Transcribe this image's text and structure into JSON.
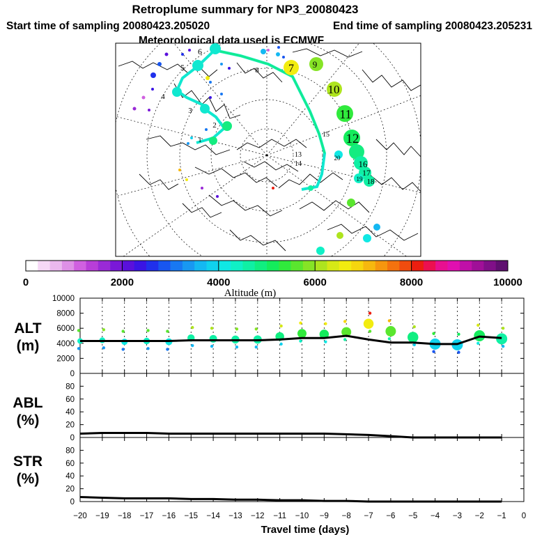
{
  "header": {
    "title": "Retroplume summary for NP3_20080423",
    "start_label": "Start time of sampling 20080423.205020",
    "end_label": "End time of sampling 20080423.205231",
    "met_label": "Meteorological data used is ECMWF"
  },
  "colorbar": {
    "tick_labels": [
      "0",
      "2000",
      "4000",
      "6000",
      "8000",
      "10000"
    ],
    "label": "Altitude (m)",
    "colors": [
      "#ffffff",
      "#f6d8f6",
      "#eab8ee",
      "#de90e6",
      "#d060e0",
      "#b83ed8",
      "#9a2ad6",
      "#7a18d8",
      "#5a10dc",
      "#3a14e4",
      "#2030ec",
      "#1856f0",
      "#1878f2",
      "#1898f2",
      "#14b8f2",
      "#10d2ee",
      "#10e8e4",
      "#10f0c6",
      "#10f0a4",
      "#10ee80",
      "#14ec5c",
      "#30ea3c",
      "#5ae62e",
      "#86e426",
      "#aee41e",
      "#d6e816",
      "#f2ec10",
      "#f6d60e",
      "#f6b80e",
      "#f6960e",
      "#f4720e",
      "#f04c0e",
      "#ec1e10",
      "#ec1050",
      "#e81090",
      "#e010b0",
      "#c010a8",
      "#a01098",
      "#801088",
      "#601070"
    ]
  },
  "map": {
    "numbers": [
      "1",
      "2",
      "3",
      "4",
      "5",
      "6",
      "7",
      "8",
      "9",
      "10",
      "11",
      "12",
      "13",
      "14",
      "15",
      "16",
      "17",
      "18",
      "19",
      "20"
    ]
  },
  "chart_data": [
    {
      "type": "line",
      "panel": "ALT",
      "ylabel": "ALT\n(m)",
      "ylabel_lines": [
        "ALT",
        "(m)"
      ],
      "ylim": [
        0,
        10000
      ],
      "yticks": [
        0,
        2000,
        4000,
        6000,
        8000,
        10000
      ],
      "x": [
        -20,
        -19,
        -18,
        -17,
        -16,
        -15,
        -14,
        -13,
        -12,
        -11,
        -10,
        -9,
        -8,
        -7,
        -6,
        -5,
        -4,
        -3,
        -2,
        -1
      ],
      "mean_altitude_m": [
        4300,
        4300,
        4300,
        4300,
        4300,
        4400,
        4400,
        4400,
        4400,
        4500,
        4700,
        4700,
        5000,
        4500,
        4100,
        4100,
        3900,
        3900,
        4900,
        4700
      ],
      "cluster_centers_altitude_m": [
        4300,
        4400,
        4200,
        4300,
        4200,
        4700,
        4600,
        4500,
        4500,
        4900,
        5300,
        5200,
        5500,
        6600,
        5600,
        4800,
        3900,
        3800,
        5000,
        4600
      ]
    },
    {
      "type": "line",
      "panel": "ABL",
      "ylabel_lines": [
        "ABL",
        "(%)"
      ],
      "ylim": [
        0,
        100
      ],
      "yticks": [
        0,
        20,
        40,
        60,
        80
      ],
      "x": [
        -20,
        -19,
        -18,
        -17,
        -16,
        -15,
        -14,
        -13,
        -12,
        -11,
        -10,
        -9,
        -8,
        -7,
        -6,
        -5,
        -4,
        -3,
        -2,
        -1
      ],
      "values": [
        6,
        7,
        7,
        7,
        6,
        6,
        6,
        6,
        6,
        6,
        6,
        6,
        5,
        4,
        2,
        0,
        0,
        0,
        0,
        0
      ]
    },
    {
      "type": "line",
      "panel": "STR",
      "ylabel_lines": [
        "STR",
        "(%)"
      ],
      "ylim": [
        0,
        100
      ],
      "yticks": [
        0,
        20,
        40,
        60,
        80
      ],
      "x": [
        -20,
        -19,
        -18,
        -17,
        -16,
        -15,
        -14,
        -13,
        -12,
        -11,
        -10,
        -9,
        -8,
        -7,
        -6,
        -5,
        -4,
        -3,
        -2,
        -1
      ],
      "values": [
        7,
        6,
        5,
        5,
        5,
        4,
        4,
        3,
        3,
        2,
        2,
        1,
        1,
        0,
        0,
        0,
        0,
        0,
        0,
        0
      ]
    }
  ],
  "xaxis": {
    "label": "Travel time (days)",
    "ticks": [
      -20,
      -19,
      -18,
      -17,
      -16,
      -15,
      -14,
      -13,
      -12,
      -11,
      -10,
      -9,
      -8,
      -7,
      -6,
      -5,
      -4,
      -3,
      -2,
      -1,
      0
    ],
    "tick_labels": [
      "−20",
      "−19",
      "−18",
      "−17",
      "−16",
      "−15",
      "−14",
      "−13",
      "−12",
      "−11",
      "−10",
      "−9",
      "−8",
      "−7",
      "−6",
      "−5",
      "−4",
      "−3",
      "−2",
      "−1",
      "0"
    ]
  }
}
